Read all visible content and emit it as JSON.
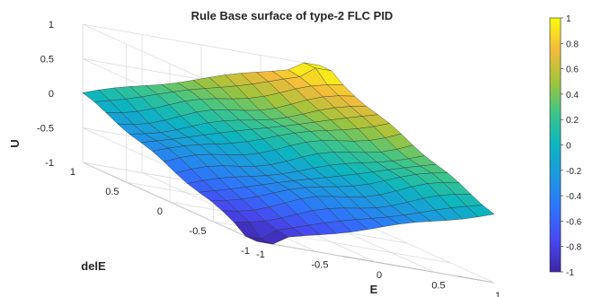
{
  "chart_data": {
    "type": "surface",
    "title": "Rule Base surface of type-2 FLC PID",
    "xlabel": "E",
    "ylabel": "delE",
    "zlabel": "U",
    "xlim": [
      -1,
      1
    ],
    "ylim": [
      -1,
      1
    ],
    "zlim": [
      -1,
      1
    ],
    "x_ticks": [
      "-1",
      "-0.5",
      "0",
      "0.5",
      "1"
    ],
    "y_ticks": [
      "-1",
      "-0.5",
      "0",
      "0.5",
      "1"
    ],
    "z_ticks": [
      "-1",
      "-0.5",
      "0",
      "0.5",
      "1"
    ],
    "colorbar": {
      "colormap": "parula",
      "clim": [
        -1,
        1
      ],
      "ticks": [
        "1",
        "0.8",
        "0.6",
        "0.4",
        "0.2",
        "0",
        "-0.2",
        "-0.4",
        "-0.6",
        "-0.8",
        "-1"
      ]
    },
    "grid": true,
    "surface": {
      "description_points": 15,
      "relation": "U approximately tracks (E + delE) / 2, saturating at -1 for E=-1,delE=-1 and +1 for E=1,delE=1"
    }
  }
}
